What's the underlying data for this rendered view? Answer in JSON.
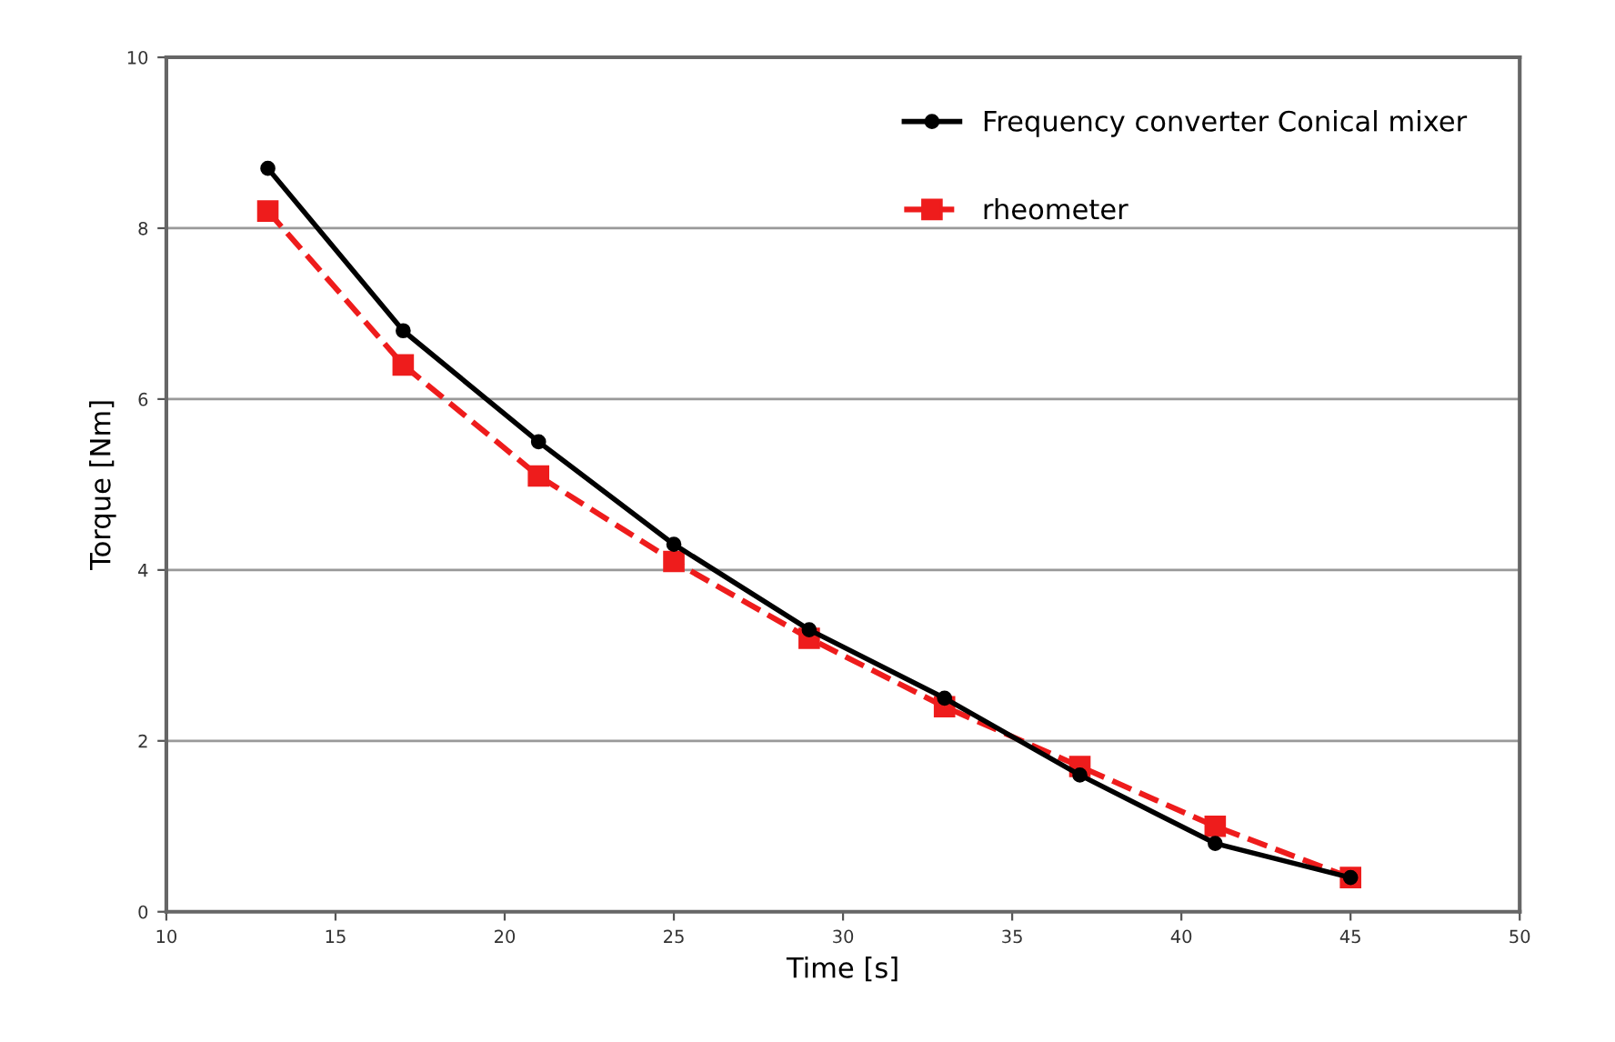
{
  "chart_data": {
    "type": "line",
    "xlabel": "Time [s]",
    "ylabel": "Torque [Nm]",
    "x": [
      13,
      17,
      21,
      25,
      29,
      33,
      37,
      41,
      45
    ],
    "series": [
      {
        "name": "Frequency converter Conical mixer",
        "color": "#000000",
        "marker": "circle",
        "line_style": "solid",
        "values": [
          8.7,
          6.8,
          5.5,
          4.3,
          3.3,
          2.5,
          1.6,
          0.8,
          0.4
        ]
      },
      {
        "name": "rheometer",
        "color": "#ee1c1c",
        "marker": "square",
        "line_style": "dashed",
        "values": [
          8.2,
          6.4,
          5.1,
          4.1,
          3.2,
          2.4,
          1.7,
          1.0,
          0.4
        ]
      }
    ],
    "xlim": [
      10,
      50
    ],
    "xticks": [
      10,
      15,
      20,
      25,
      30,
      35,
      40,
      45,
      50
    ],
    "ylim": [
      0,
      10
    ],
    "yticks": [
      0,
      2,
      4,
      6,
      8,
      10
    ],
    "grid": "y",
    "legend": "top right"
  }
}
